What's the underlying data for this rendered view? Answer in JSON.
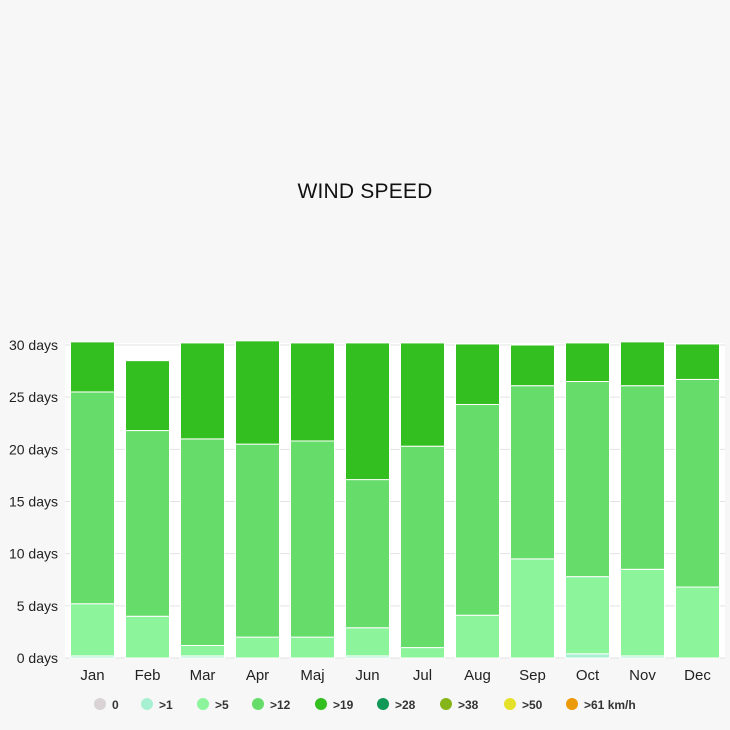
{
  "chart_data": {
    "type": "bar",
    "stacked": true,
    "title": "WIND SPEED",
    "xlabel": "",
    "ylabel": "",
    "ylim": [
      0,
      30
    ],
    "y_ticks": [
      "0 days",
      "5 days",
      "10 days",
      "15 days",
      "20 days",
      "25 days",
      "30 days"
    ],
    "categories": [
      "Jan",
      "Feb",
      "Mar",
      "Apr",
      "Maj",
      "Jun",
      "Jul",
      "Aug",
      "Sep",
      "Oct",
      "Nov",
      "Dec"
    ],
    "grid": true,
    "legend_position": "bottom",
    "series": [
      {
        "name": "0",
        "color": "#d9d3d5",
        "values": [
          0,
          0,
          0,
          0,
          0,
          0,
          0,
          0,
          0,
          0,
          0,
          0
        ]
      },
      {
        "name": ">1",
        "color": "#a8f0d2",
        "values": [
          0.2,
          0,
          0.2,
          0,
          0,
          0.2,
          0,
          0,
          0,
          0.4,
          0.2,
          0
        ]
      },
      {
        "name": ">5",
        "color": "#8cf59c",
        "values": [
          5,
          4,
          1,
          2,
          2,
          2.7,
          1,
          4.1,
          9.5,
          7.4,
          8.3,
          6.8
        ]
      },
      {
        "name": ">12",
        "color": "#66dd6a",
        "values": [
          20.3,
          17.8,
          19.8,
          18.5,
          18.8,
          14.2,
          19.3,
          20.2,
          16.6,
          18.7,
          17.6,
          19.9
        ]
      },
      {
        "name": ">19",
        "color": "#33bf1f",
        "values": [
          4.8,
          6.7,
          9.2,
          9.9,
          9.4,
          13.1,
          9.9,
          5.8,
          3.9,
          3.7,
          4.2,
          3.4
        ]
      },
      {
        "name": ">28",
        "color": "#109856",
        "values": [
          0,
          0,
          0,
          0,
          0,
          0,
          0,
          0,
          0,
          0,
          0,
          0
        ]
      },
      {
        "name": ">38",
        "color": "#86b51a",
        "values": [
          0,
          0,
          0,
          0,
          0,
          0,
          0,
          0,
          0,
          0,
          0,
          0
        ]
      },
      {
        "name": ">50",
        "color": "#e5e02a",
        "values": [
          0,
          0,
          0,
          0,
          0,
          0,
          0,
          0,
          0,
          0,
          0,
          0
        ]
      },
      {
        "name": ">61 km/h",
        "color": "#ea9a0a",
        "values": [
          0,
          0,
          0,
          0,
          0,
          0,
          0,
          0,
          0,
          0,
          0,
          0
        ]
      }
    ]
  }
}
